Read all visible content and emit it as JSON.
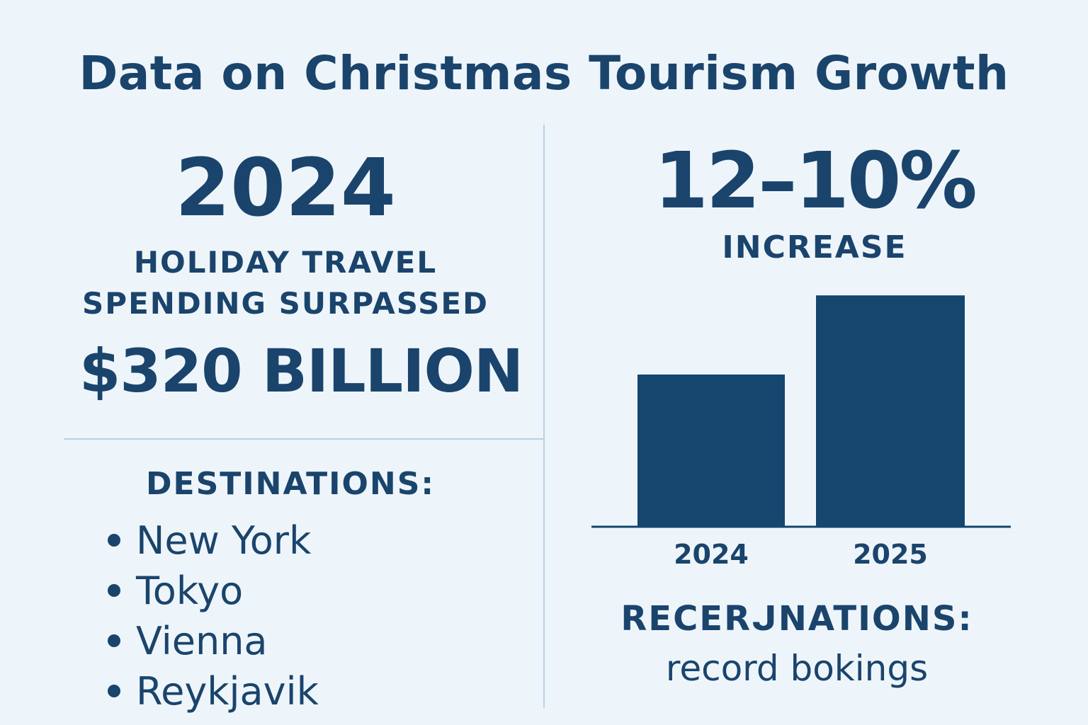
{
  "title": "Data on Christmas Tourism Growth",
  "left": {
    "year": "2024",
    "caption_line1": "HOLIDAY TRAVEL",
    "caption_line2": "SPENDING SURPASSED",
    "amount": "$320 BILLION",
    "destinations_heading": "DESTINATIONS:",
    "destinations": [
      "New York",
      "Tokyo",
      "Vienna",
      "Reykjavik"
    ]
  },
  "right": {
    "percent": "12–10%",
    "increase_label": "INCREASE",
    "note_heading": "RECERᒍNATIONS:",
    "note_text": "record bokings"
  },
  "colors": {
    "background": "#eef5fa",
    "text": "#1a446c",
    "bar": "#14466e",
    "divider": "#b9d0e2"
  },
  "chart_data": {
    "type": "bar",
    "categories": [
      "2024",
      "2025"
    ],
    "values": [
      100,
      152
    ],
    "ylim": [
      0,
      160
    ],
    "grid": false,
    "title": "",
    "xlabel": "",
    "ylabel": ""
  }
}
